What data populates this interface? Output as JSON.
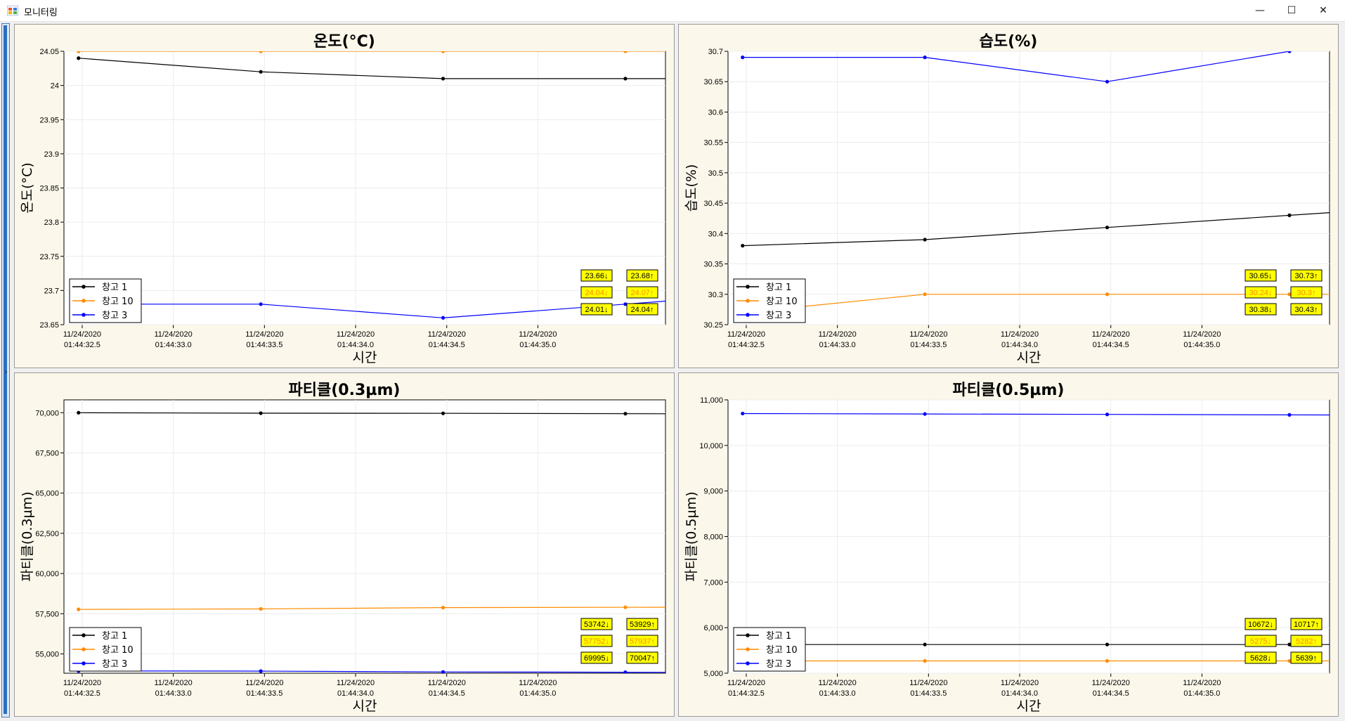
{
  "window": {
    "title": "모니터링",
    "controls": {
      "minimize": "—",
      "maximize": "☐",
      "close": "✕"
    },
    "expand_glyph": "›"
  },
  "chart_data": [
    {
      "type": "line",
      "title": "온도(°C)",
      "xlabel": "시간",
      "ylabel": "온도(°C)",
      "ylim": [
        23.65,
        24.05
      ],
      "yticks": [
        23.65,
        23.7,
        23.75,
        23.8,
        23.85,
        23.9,
        23.95,
        24,
        24.05
      ],
      "ytick_labels": [
        "23.65",
        "23.7",
        "23.75",
        "23.8",
        "23.85",
        "23.9",
        "23.95",
        "24",
        "24.05"
      ],
      "xlim": [
        32.4,
        35.7
      ],
      "xticks": [
        32.5,
        33.0,
        33.5,
        34.0,
        34.5,
        35.0
      ],
      "xtick_labels": [
        [
          "11/24/2020",
          "01:44:32.5"
        ],
        [
          "11/24/2020",
          "01:44:33.0"
        ],
        [
          "11/24/2020",
          "01:44:33.5"
        ],
        [
          "11/24/2020",
          "01:44:34.0"
        ],
        [
          "11/24/2020",
          "01:44:34.5"
        ],
        [
          "11/24/2020",
          "01:44:35.0"
        ]
      ],
      "x": [
        32.48,
        33.48,
        34.48,
        35.48
      ],
      "series": [
        {
          "name": "창고 1",
          "color": "#000000",
          "values": [
            24.04,
            24.02,
            24.01,
            24.01
          ]
        },
        {
          "name": "창고 10",
          "color": "#ff8c00",
          "values": [
            24.05,
            24.05,
            24.05,
            24.05
          ]
        },
        {
          "name": "창고 3",
          "color": "#0000ff",
          "values": [
            23.68,
            23.68,
            23.66,
            23.68
          ]
        }
      ],
      "legend": [
        "창고 1",
        "창고 10",
        "창고 3"
      ],
      "minmax": [
        {
          "min": "23.66↓",
          "max": "23.68↑",
          "color": "#000000"
        },
        {
          "min": "24.04↓",
          "max": "24.07↑",
          "color": "#ff8c00"
        },
        {
          "min": "24.01↓",
          "max": "24.04↑",
          "color": "#000000"
        }
      ]
    },
    {
      "type": "line",
      "title": "습도(%)",
      "xlabel": "시간",
      "ylabel": "습도(%)",
      "ylim": [
        30.25,
        30.7
      ],
      "yticks": [
        30.25,
        30.3,
        30.35,
        30.4,
        30.45,
        30.5,
        30.55,
        30.6,
        30.65,
        30.7
      ],
      "ytick_labels": [
        "30.25",
        "30.3",
        "30.35",
        "30.4",
        "30.45",
        "30.5",
        "30.55",
        "30.6",
        "30.65",
        "30.7"
      ],
      "xlim": [
        32.4,
        35.7
      ],
      "xticks": [
        32.5,
        33.0,
        33.5,
        34.0,
        34.5,
        35.0
      ],
      "xtick_labels": [
        [
          "11/24/2020",
          "01:44:32.5"
        ],
        [
          "11/24/2020",
          "01:44:33.0"
        ],
        [
          "11/24/2020",
          "01:44:33.5"
        ],
        [
          "11/24/2020",
          "01:44:34.0"
        ],
        [
          "11/24/2020",
          "01:44:34.5"
        ],
        [
          "11/24/2020",
          "01:44:35.0"
        ]
      ],
      "x": [
        32.48,
        33.48,
        34.48,
        35.48
      ],
      "series": [
        {
          "name": "창고 1",
          "color": "#000000",
          "values": [
            30.38,
            30.39,
            30.41,
            30.43
          ]
        },
        {
          "name": "창고 10",
          "color": "#ff8c00",
          "values": [
            30.27,
            30.3,
            30.3,
            30.3
          ]
        },
        {
          "name": "창고 3",
          "color": "#0000ff",
          "values": [
            30.69,
            30.69,
            30.65,
            30.7
          ]
        }
      ],
      "legend": [
        "창고 1",
        "창고 10",
        "창고 3"
      ],
      "minmax": [
        {
          "min": "30.65↓",
          "max": "30.73↑",
          "color": "#000000"
        },
        {
          "min": "30.24↓",
          "max": "30.3↑",
          "color": "#ff8c00"
        },
        {
          "min": "30.38↓",
          "max": "30.43↑",
          "color": "#000000"
        }
      ]
    },
    {
      "type": "line",
      "title": "파티클(0.3µm)",
      "xlabel": "시간",
      "ylabel": "파티클(0.3µm)",
      "ylim": [
        53800,
        70800
      ],
      "yticks": [
        55000,
        57500,
        60000,
        62500,
        65000,
        67500,
        70000
      ],
      "ytick_labels": [
        "55,000",
        "57,500",
        "60,000",
        "62,500",
        "65,000",
        "67,500",
        "70,000"
      ],
      "xlim": [
        32.4,
        35.7
      ],
      "xticks": [
        32.5,
        33.0,
        33.5,
        34.0,
        34.5,
        35.0
      ],
      "xtick_labels": [
        [
          "11/24/2020",
          "01:44:32.5"
        ],
        [
          "11/24/2020",
          "01:44:33.0"
        ],
        [
          "11/24/2020",
          "01:44:33.5"
        ],
        [
          "11/24/2020",
          "01:44:34.0"
        ],
        [
          "11/24/2020",
          "01:44:34.5"
        ],
        [
          "11/24/2020",
          "01:44:35.0"
        ]
      ],
      "x": [
        32.48,
        33.48,
        34.48,
        35.48
      ],
      "series": [
        {
          "name": "창고 1",
          "color": "#000000",
          "values": [
            70000,
            69970,
            69960,
            69940
          ]
        },
        {
          "name": "창고 10",
          "color": "#ff8c00",
          "values": [
            57770,
            57800,
            57880,
            57900
          ]
        },
        {
          "name": "창고 3",
          "color": "#0000ff",
          "values": [
            53940,
            53930,
            53880,
            53860
          ]
        }
      ],
      "legend": [
        "창고 1",
        "창고 10",
        "창고 3"
      ],
      "minmax": [
        {
          "min": "53742↓",
          "max": "53929↑",
          "color": "#000000"
        },
        {
          "min": "57752↓",
          "max": "57937↑",
          "color": "#ff8c00"
        },
        {
          "min": "69995↓",
          "max": "70047↑",
          "color": "#000000"
        }
      ]
    },
    {
      "type": "line",
      "title": "파티클(0.5µm)",
      "xlabel": "시간",
      "ylabel": "파티클(0.5µm)",
      "ylim": [
        5000,
        11000
      ],
      "yticks": [
        5000,
        6000,
        7000,
        8000,
        9000,
        10000,
        11000
      ],
      "ytick_labels": [
        "5,000",
        "6,000",
        "7,000",
        "8,000",
        "9,000",
        "10,000",
        "11,000"
      ],
      "xlim": [
        32.4,
        35.7
      ],
      "xticks": [
        32.5,
        33.0,
        33.5,
        34.0,
        34.5,
        35.0
      ],
      "xtick_labels": [
        [
          "11/24/2020",
          "01:44:32.5"
        ],
        [
          "11/24/2020",
          "01:44:33.0"
        ],
        [
          "11/24/2020",
          "01:44:33.5"
        ],
        [
          "11/24/2020",
          "01:44:34.0"
        ],
        [
          "11/24/2020",
          "01:44:34.5"
        ],
        [
          "11/24/2020",
          "01:44:35.0"
        ]
      ],
      "x": [
        32.48,
        33.48,
        34.48,
        35.48
      ],
      "series": [
        {
          "name": "창고 1",
          "color": "#000000",
          "values": [
            5630,
            5630,
            5630,
            5630
          ]
        },
        {
          "name": "창고 10",
          "color": "#ff8c00",
          "values": [
            5270,
            5270,
            5270,
            5270
          ]
        },
        {
          "name": "창고 3",
          "color": "#0000ff",
          "values": [
            10700,
            10690,
            10680,
            10670
          ]
        }
      ],
      "legend": [
        "창고 1",
        "창고 10",
        "창고 3"
      ],
      "minmax": [
        {
          "min": "10672↓",
          "max": "10717↑",
          "color": "#000000"
        },
        {
          "min": "5275↓",
          "max": "5282↑",
          "color": "#ff8c00"
        },
        {
          "min": "5628↓",
          "max": "5639↑",
          "color": "#000000"
        }
      ]
    }
  ]
}
